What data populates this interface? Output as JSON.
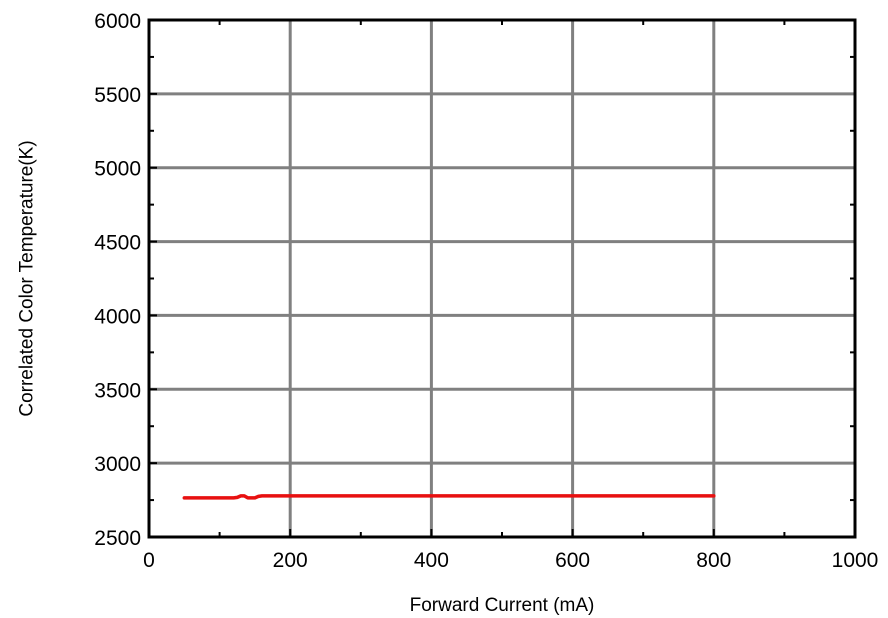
{
  "chart_data": {
    "type": "line",
    "xlabel": "Forward Current (mA)",
    "ylabel": "Correlated Color Temperature(K)",
    "xlim": [
      0,
      1000
    ],
    "ylim": [
      2500,
      6000
    ],
    "x_ticks": [
      "0",
      "200",
      "400",
      "600",
      "800",
      "1000"
    ],
    "y_ticks": [
      "2500",
      "3000",
      "3500",
      "4000",
      "4500",
      "5000",
      "5500",
      "6000"
    ],
    "grid": true,
    "series": [
      {
        "color": "#e81010",
        "x": [
          50,
          70,
          100,
          110,
          120,
          125,
          130,
          135,
          140,
          145,
          150,
          155,
          160,
          200,
          300,
          400,
          500,
          600,
          700,
          800
        ],
        "y": [
          2765,
          2765,
          2765,
          2765,
          2765,
          2768,
          2778,
          2778,
          2765,
          2765,
          2765,
          2775,
          2778,
          2778,
          2778,
          2778,
          2778,
          2778,
          2778,
          2778
        ]
      }
    ]
  }
}
